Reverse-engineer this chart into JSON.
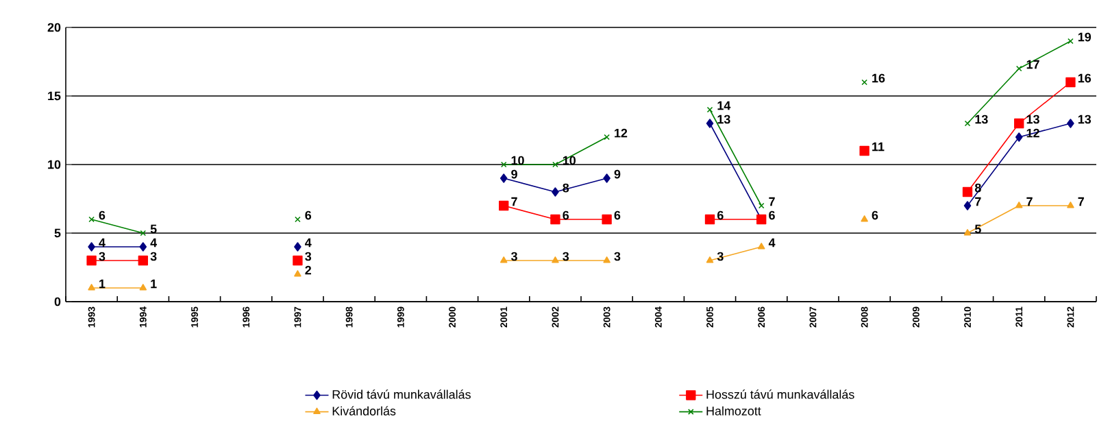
{
  "chart_data": {
    "type": "line",
    "categories": [
      "1993",
      "1994",
      "1995",
      "1996",
      "1997",
      "1998",
      "1999",
      "2000",
      "2001",
      "2002",
      "2003",
      "2004",
      "2005",
      "2006",
      "2007",
      "2008",
      "2009",
      "2010",
      "2011",
      "2012"
    ],
    "series": [
      {
        "name": "Rövid távú munkavállalás",
        "color": "#000080",
        "marker": "diamond",
        "values": [
          4,
          4,
          null,
          null,
          4,
          null,
          null,
          null,
          9,
          8,
          9,
          null,
          13,
          6,
          null,
          null,
          null,
          7,
          12,
          13
        ],
        "value_labels": [
          "4",
          "4",
          null,
          null,
          "4",
          null,
          null,
          null,
          "9",
          "8",
          "9",
          null,
          "13",
          null,
          null,
          null,
          null,
          "7",
          "12",
          "13"
        ]
      },
      {
        "name": "Hosszú távú munkavállalás",
        "color": "#ff0000",
        "marker": "square",
        "values": [
          3,
          3,
          null,
          null,
          3,
          null,
          null,
          null,
          7,
          6,
          6,
          null,
          6,
          6,
          null,
          11,
          null,
          8,
          13,
          16
        ],
        "value_labels": [
          "3",
          "3",
          null,
          null,
          "3",
          null,
          null,
          null,
          "7",
          "6",
          "6",
          null,
          "6",
          "6",
          null,
          "11",
          null,
          "8",
          "13",
          "16"
        ]
      },
      {
        "name": "Kivándorlás",
        "color": "#f5a623",
        "marker": "triangle",
        "values": [
          1,
          1,
          null,
          null,
          2,
          null,
          null,
          null,
          3,
          3,
          3,
          null,
          3,
          4,
          null,
          6,
          null,
          5,
          7,
          7
        ],
        "value_labels": [
          "1",
          "1",
          null,
          null,
          "2",
          null,
          null,
          null,
          "3",
          "3",
          "3",
          null,
          "3",
          "4",
          null,
          "6",
          null,
          "5",
          "7",
          "7"
        ]
      },
      {
        "name": "Halmozott",
        "color": "#008000",
        "marker": "cross",
        "values": [
          6,
          5,
          null,
          null,
          6,
          null,
          null,
          null,
          10,
          10,
          12,
          null,
          14,
          7,
          null,
          16,
          null,
          13,
          17,
          19
        ],
        "value_labels": [
          "6",
          "5",
          null,
          null,
          "6",
          null,
          null,
          null,
          "10",
          "10",
          "12",
          null,
          "14",
          "7",
          null,
          "16",
          null,
          "13",
          "17",
          "19"
        ]
      }
    ],
    "ylim": [
      0,
      20
    ],
    "yticks": [
      0,
      5,
      10,
      15,
      20
    ],
    "grid": "y",
    "legend": "bottom"
  }
}
